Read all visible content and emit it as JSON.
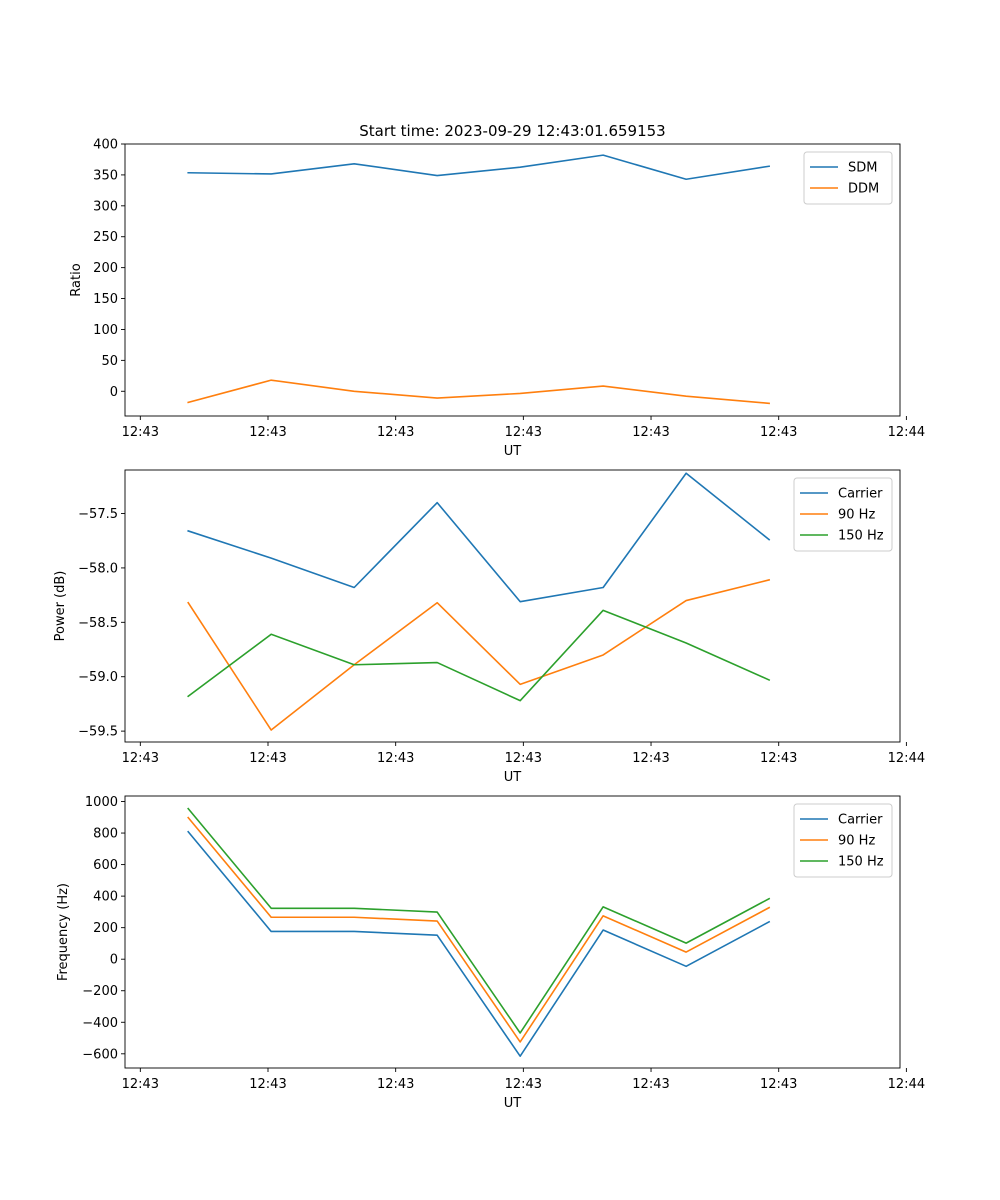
{
  "figure_title": "Start time: 2023-09-29 12:43:01.659153",
  "colors": {
    "blue": "#1f77b4",
    "orange": "#ff7f0e",
    "green": "#2ca02c"
  },
  "chart_data": [
    {
      "type": "line",
      "title": "Start time: 2023-09-29 12:43:01.659153",
      "xlabel": "UT",
      "ylabel": "Ratio",
      "x_unit": "seconds after 12:43:00",
      "xlim": [
        2.9,
        63.6
      ],
      "x": [
        7.85,
        14.35,
        20.85,
        27.35,
        33.85,
        40.35,
        46.85,
        53.35
      ],
      "ylim": [
        -40,
        400
      ],
      "yticks": [
        0,
        50,
        100,
        150,
        200,
        250,
        300,
        350,
        400
      ],
      "xtick_positions": [
        4.1,
        14.1,
        24.1,
        34.1,
        44.1,
        54.1,
        64.1
      ],
      "xtick_labels": [
        "12:43",
        "12:43",
        "12:43",
        "12:43",
        "12:43",
        "12:43",
        "12:44"
      ],
      "legend_loc": "upper right",
      "series": [
        {
          "name": "SDM",
          "color": "#1f77b4",
          "values": [
            353.5,
            351.5,
            368,
            349,
            362.5,
            382,
            343,
            364
          ]
        },
        {
          "name": "DDM",
          "color": "#ff7f0e",
          "values": [
            -18,
            18,
            0,
            -11,
            -3.5,
            8.5,
            -8,
            -19.5
          ]
        }
      ]
    },
    {
      "type": "line",
      "title": "",
      "xlabel": "UT",
      "ylabel": "Power (dB)",
      "x_unit": "seconds after 12:43:00",
      "xlim": [
        2.9,
        63.6
      ],
      "x": [
        7.85,
        14.35,
        20.85,
        27.35,
        33.85,
        40.35,
        46.85,
        53.35
      ],
      "ylim": [
        -59.6,
        -57.1
      ],
      "yticks": [
        -59.5,
        -59.0,
        -58.5,
        -58.0,
        -57.5
      ],
      "ytick_labels": [
        "−59.5",
        "−59.0",
        "−58.5",
        "−58.0",
        "−57.5"
      ],
      "xtick_positions": [
        4.1,
        14.1,
        24.1,
        34.1,
        44.1,
        54.1,
        64.1
      ],
      "xtick_labels": [
        "12:43",
        "12:43",
        "12:43",
        "12:43",
        "12:43",
        "12:43",
        "12:44"
      ],
      "legend_loc": "upper right",
      "series": [
        {
          "name": "Carrier",
          "color": "#1f77b4",
          "values": [
            -57.66,
            -57.91,
            -58.18,
            -57.4,
            -58.31,
            -58.18,
            -57.13,
            -57.74
          ]
        },
        {
          "name": "90 Hz",
          "color": "#ff7f0e",
          "values": [
            -58.32,
            -59.49,
            -58.89,
            -58.32,
            -59.07,
            -58.8,
            -58.3,
            -58.11
          ]
        },
        {
          "name": "150 Hz",
          "color": "#2ca02c",
          "values": [
            -59.18,
            -58.61,
            -58.89,
            -58.87,
            -59.22,
            -58.39,
            -58.69,
            -59.03
          ]
        }
      ]
    },
    {
      "type": "line",
      "title": "",
      "xlabel": "UT",
      "ylabel": "Frequency (Hz)",
      "x_unit": "seconds after 12:43:00",
      "xlim": [
        2.9,
        63.6
      ],
      "x": [
        7.85,
        14.35,
        20.85,
        27.35,
        33.85,
        40.35,
        46.85,
        53.35
      ],
      "ylim": [
        -690,
        1035
      ],
      "yticks": [
        -600,
        -400,
        -200,
        0,
        200,
        400,
        600,
        800,
        1000
      ],
      "ytick_labels": [
        "−600",
        "−400",
        "−200",
        "0",
        "200",
        "400",
        "600",
        "800",
        "1000"
      ],
      "xtick_positions": [
        4.1,
        14.1,
        24.1,
        34.1,
        44.1,
        54.1,
        64.1
      ],
      "xtick_labels": [
        "12:43",
        "12:43",
        "12:43",
        "12:43",
        "12:43",
        "12:43",
        "12:44"
      ],
      "legend_loc": "upper right",
      "series": [
        {
          "name": "Carrier",
          "color": "#1f77b4",
          "values": [
            808,
            176,
            176,
            152,
            -615,
            185,
            -45,
            237
          ]
        },
        {
          "name": "90 Hz",
          "color": "#ff7f0e",
          "values": [
            898,
            266,
            266,
            242,
            -525,
            275,
            45,
            327
          ]
        },
        {
          "name": "150 Hz",
          "color": "#2ca02c",
          "values": [
            955,
            323,
            323,
            299,
            -468,
            332,
            102,
            384
          ]
        }
      ]
    }
  ]
}
